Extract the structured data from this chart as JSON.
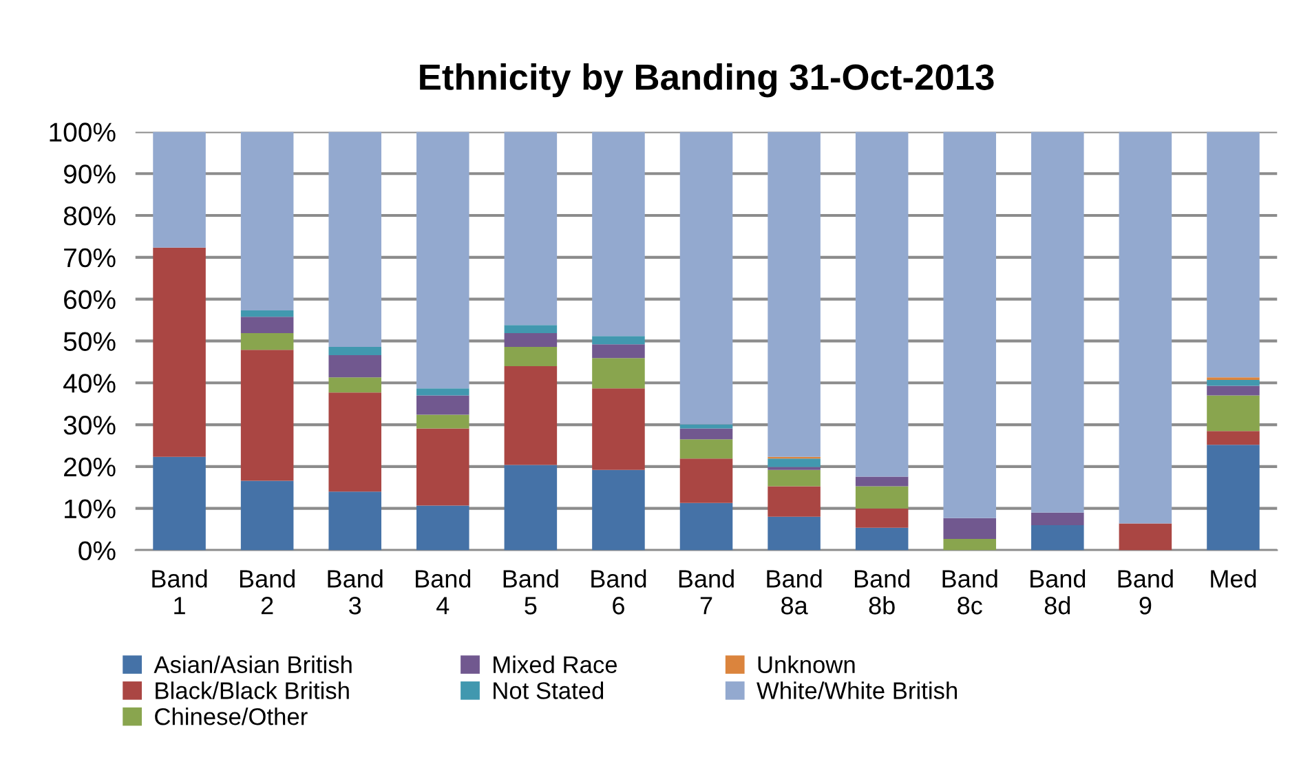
{
  "chart_data": {
    "type": "bar",
    "title": "Ethnicity by Banding 31-Oct-2013",
    "stacked": true,
    "categories": [
      "Band\n1",
      "Band\n2",
      "Band\n3",
      "Band\n4",
      "Band\n5",
      "Band\n6",
      "Band\n7",
      "Band\n8a",
      "Band\n8b",
      "Band\n8c",
      "Band\n8d",
      "Band\n9",
      "Med"
    ],
    "series": [
      {
        "name": "Asian/Asian British",
        "color": "#4572a7",
        "values": [
          22.3,
          16.6,
          14.0,
          10.7,
          20.4,
          19.2,
          11.3,
          8.0,
          5.4,
          0,
          6.0,
          0,
          25.2
        ]
      },
      {
        "name": "Black/Black British",
        "color": "#aa4643",
        "values": [
          50.0,
          31.3,
          23.7,
          18.4,
          23.6,
          19.5,
          10.6,
          7.3,
          4.6,
          0,
          0,
          6.4,
          3.3
        ]
      },
      {
        "name": "Chinese/Other",
        "color": "#89a54e",
        "values": [
          0,
          4.0,
          3.6,
          3.3,
          4.6,
          7.2,
          4.6,
          3.9,
          5.3,
          2.7,
          0,
          0,
          8.5
        ]
      },
      {
        "name": "Mixed Race",
        "color": "#71588f",
        "values": [
          0,
          3.9,
          5.3,
          4.6,
          3.3,
          3.3,
          2.6,
          0.7,
          2.3,
          5.0,
          3.0,
          0,
          2.3
        ]
      },
      {
        "name": "Not Stated",
        "color": "#4198af",
        "values": [
          0,
          1.5,
          2.0,
          1.7,
          1.9,
          2.0,
          1.0,
          2.0,
          0,
          0,
          0,
          0,
          1.4
        ]
      },
      {
        "name": "Unknown",
        "color": "#db843d",
        "values": [
          0,
          0,
          0,
          0,
          0,
          0,
          0,
          0.4,
          0,
          0,
          0,
          0,
          0.6
        ]
      },
      {
        "name": "White/White British",
        "color": "#93a9cf",
        "values": [
          27.7,
          42.7,
          51.4,
          61.3,
          46.2,
          48.8,
          69.9,
          77.7,
          82.4,
          92.3,
          91.0,
          93.6,
          58.7
        ]
      }
    ],
    "ylim": [
      0,
      100
    ],
    "yticks": [
      {
        "value": 0,
        "label": "0%"
      },
      {
        "value": 10,
        "label": "10%"
      },
      {
        "value": 20,
        "label": "20%"
      },
      {
        "value": 30,
        "label": "30%"
      },
      {
        "value": 40,
        "label": "40%"
      },
      {
        "value": 50,
        "label": "50%"
      },
      {
        "value": 60,
        "label": "60%"
      },
      {
        "value": 70,
        "label": "70%"
      },
      {
        "value": 80,
        "label": "80%"
      },
      {
        "value": 90,
        "label": "90%"
      },
      {
        "value": 100,
        "label": "100%"
      }
    ],
    "grid": "y",
    "legend": "bottom"
  }
}
